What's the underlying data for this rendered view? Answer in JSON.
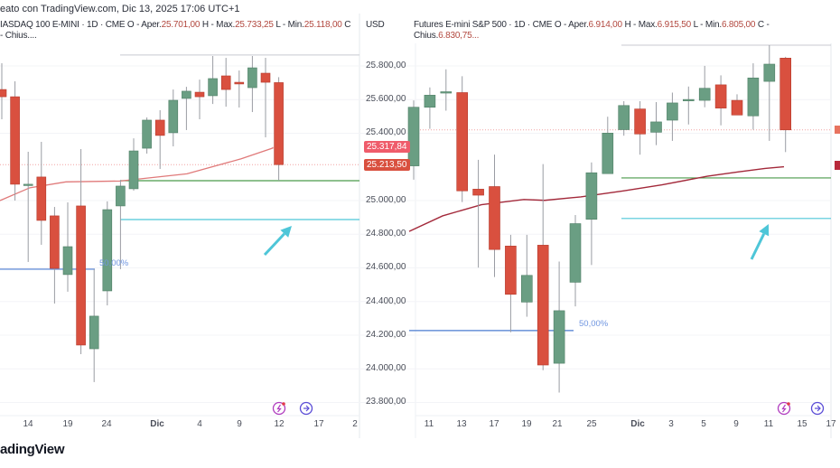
{
  "header": {
    "caption": "eato con TradingView.com, Dic 13, 2025 17:06 UTC+1"
  },
  "left_legend": {
    "symbol": "IASDAQ 100 E-MINI · 1D · CME",
    "o_label": "O - Aper.",
    "o": "25.701,00",
    "h_label": "H - Max.",
    "h": "25.733,25",
    "l_label": "L - Min.",
    "l": "25.118,00",
    "c_label": "C - Chius...."
  },
  "right_legend": {
    "symbol": "Futures E-mini S&P 500 · 1D · CME",
    "o_label": "O - Aper.",
    "o": "6.914,00",
    "h_label": "H - Max.",
    "h": "6.915,50",
    "l_label": "L - Min.",
    "l": "6.805,00",
    "c_label": "C - Chius.",
    "c": "6.830,75..."
  },
  "currency": "USD",
  "price_tags": {
    "ma": "25.317,84",
    "last": "25.213,50"
  },
  "fib_label": "50,00%",
  "footer": {
    "brand": "adingView"
  },
  "colors": {
    "up": "#6a9e83",
    "down": "#d9503f",
    "ma_left": "#e07a7a",
    "ma_right": "#a3293a",
    "support": "#4b9a4b",
    "target": "#4ec6d8",
    "fib": "#4a7bd0"
  },
  "chart_data": [
    {
      "type": "candlestick",
      "title": "NASDAQ 100 E-MINI 1D CME",
      "ylabel": "USD",
      "ylim": [
        23750,
        25980
      ],
      "y_ticks": [
        "25.800,00",
        "25.600,00",
        "25.400,00",
        "25.000,00",
        "24.800,00",
        "24.600,00",
        "24.400,00",
        "24.200,00",
        "24.000,00",
        "23.800,00"
      ],
      "y_tick_values": [
        25800,
        25600,
        25400,
        25000,
        24800,
        24600,
        24400,
        24200,
        24000,
        23800
      ],
      "x_ticks": [
        "14",
        "19",
        "24",
        "Dic",
        "4",
        "9",
        "12",
        "17",
        "2"
      ],
      "ohlc": [
        [
          25660,
          25816,
          25483,
          25617
        ],
        [
          25617,
          25709,
          25000,
          25097
        ],
        [
          25097,
          25290,
          24635,
          25097
        ],
        [
          25140,
          25349,
          24737,
          24882
        ],
        [
          24909,
          24962,
          24388,
          24597
        ],
        [
          24560,
          24989,
          24458,
          24726
        ],
        [
          24968,
          25306,
          24087,
          24141
        ],
        [
          24119,
          24592,
          23921,
          24313
        ],
        [
          24463,
          24995,
          24377,
          24946
        ],
        [
          24968,
          25123,
          24592,
          25086
        ],
        [
          25070,
          25370,
          25059,
          25295
        ],
        [
          25311,
          25494,
          25279,
          25478
        ],
        [
          25478,
          25537,
          25188,
          25387
        ],
        [
          25403,
          25660,
          25322,
          25596
        ],
        [
          25607,
          25676,
          25419,
          25650
        ],
        [
          25644,
          25719,
          25483,
          25617
        ],
        [
          25623,
          25859,
          25574,
          25725
        ],
        [
          25741,
          25848,
          25558,
          25660
        ],
        [
          25703,
          25773,
          25553,
          25693
        ],
        [
          25671,
          25859,
          25526,
          25789
        ],
        [
          25757,
          25848,
          25376,
          25703
        ],
        [
          25701,
          25733.25,
          25118,
          25213.5
        ]
      ],
      "moving_average": [
        25000,
        25076,
        25111,
        25116,
        25159,
        25248,
        25312,
        25318
      ],
      "levels": {
        "top": 25865,
        "support": 25118,
        "target": 24887,
        "fib_50": 24592,
        "last": 25213.5,
        "ma_last": 25317.84
      }
    },
    {
      "type": "candlestick",
      "title": "Futures E-mini S&P 500 1D CME",
      "x_ticks": [
        "11",
        "13",
        "17",
        "19",
        "21",
        "25",
        "Dic",
        "3",
        "5",
        "9",
        "11",
        "15",
        "17"
      ],
      "ohlc": [
        [
          6789,
          6865,
          6773,
          6857
        ],
        [
          6857,
          6880,
          6832,
          6871
        ],
        [
          6875,
          6901,
          6853,
          6875
        ],
        [
          6874,
          6893,
          6747,
          6760
        ],
        [
          6762,
          6796,
          6671,
          6755
        ],
        [
          6765,
          6802,
          6660,
          6692
        ],
        [
          6696,
          6709,
          6596,
          6640
        ],
        [
          6631,
          6709,
          6614,
          6662
        ],
        [
          6697,
          6791,
          6552,
          6558
        ],
        [
          6560,
          6678,
          6526,
          6621
        ],
        [
          6654,
          6732,
          6626,
          6722
        ],
        [
          6727,
          6793,
          6674,
          6781
        ],
        [
          6780,
          6846,
          6780,
          6827
        ],
        [
          6831,
          6864,
          6824,
          6859
        ],
        [
          6855,
          6864,
          6802,
          6826
        ],
        [
          6828,
          6863,
          6813,
          6840
        ],
        [
          6842,
          6874,
          6818,
          6862
        ],
        [
          6866,
          6881,
          6837,
          6866
        ],
        [
          6865,
          6905,
          6857,
          6879
        ],
        [
          6883,
          6894,
          6836,
          6856
        ],
        [
          6865,
          6872,
          6848,
          6848
        ],
        [
          6847,
          6908,
          6831,
          6891
        ],
        [
          6887,
          6929,
          6818,
          6907
        ],
        [
          6914,
          6915.5,
          6805,
          6830.75
        ]
      ],
      "moving_average": [
        6713,
        6731,
        6744,
        6750,
        6749,
        6753,
        6760,
        6767,
        6777,
        6782,
        6786,
        6788
      ],
      "levels": {
        "top": 6929,
        "support": 6775,
        "target": 6728,
        "fib_50": 6598,
        "last": 6830.75
      }
    }
  ]
}
